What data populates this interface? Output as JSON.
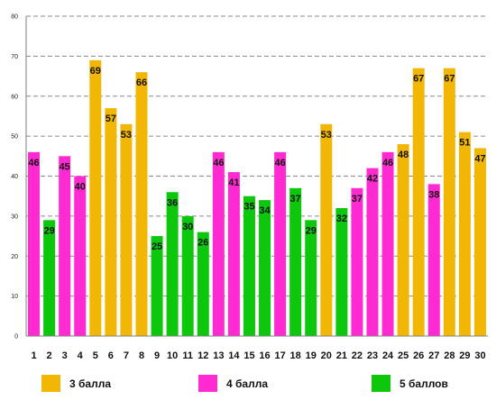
{
  "colors": {
    "grade3": "#f2b705",
    "grade4": "#ff2ad1",
    "grade5": "#0dc70d"
  },
  "chart_data": {
    "type": "bar",
    "title": "",
    "xlabel": "",
    "ylabel": "",
    "ylim": [
      0,
      80
    ],
    "yticks": [
      "0",
      "10",
      "20",
      "30",
      "40",
      "50",
      "60",
      "70",
      "80"
    ],
    "grid": true,
    "legend_position": "bottom",
    "categories": [
      "1",
      "2",
      "3",
      "4",
      "5",
      "6",
      "7",
      "8",
      "9",
      "10",
      "11",
      "12",
      "13",
      "14",
      "15",
      "16",
      "17",
      "18",
      "19",
      "20",
      "21",
      "22",
      "23",
      "24",
      "25",
      "26",
      "27",
      "28",
      "29",
      "30"
    ],
    "values": [
      46,
      29,
      45,
      40,
      69,
      57,
      53,
      66,
      25,
      36,
      30,
      26,
      46,
      41,
      35,
      34,
      46,
      37,
      29,
      53,
      32,
      37,
      42,
      46,
      48,
      67,
      38,
      67,
      51,
      47
    ],
    "value_labels": [
      "46",
      "29",
      "45",
      "40",
      "69",
      "57",
      "53",
      "66",
      "25",
      "36",
      "30",
      "26",
      "46",
      "41",
      "35",
      "34",
      "46",
      "37",
      "29",
      "53",
      "32",
      "37",
      "42",
      "46",
      "48",
      "67",
      "38",
      "67",
      "51",
      "47"
    ],
    "bar_group": [
      "grade4",
      "grade5",
      "grade4",
      "grade4",
      "grade3",
      "grade3",
      "grade3",
      "grade3",
      "grade5",
      "grade5",
      "grade5",
      "grade5",
      "grade4",
      "grade4",
      "grade5",
      "grade5",
      "grade4",
      "grade5",
      "grade5",
      "grade3",
      "grade5",
      "grade4",
      "grade4",
      "grade4",
      "grade3",
      "grade3",
      "grade4",
      "grade3",
      "grade3",
      "grade3"
    ],
    "legend": [
      {
        "key": "grade3",
        "label": "3 балла"
      },
      {
        "key": "grade4",
        "label": "4 балла"
      },
      {
        "key": "grade5",
        "label": "5 баллов"
      }
    ]
  }
}
